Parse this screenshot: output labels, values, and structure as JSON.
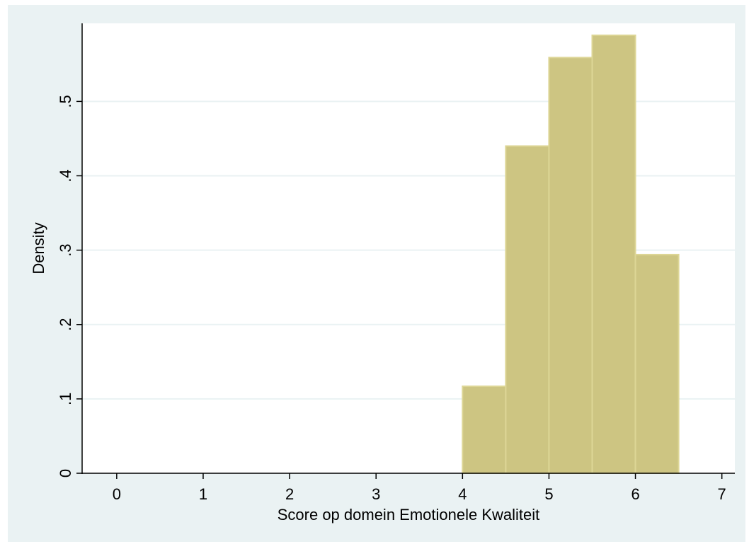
{
  "chart_data": {
    "type": "bar",
    "title": "",
    "xlabel": "Score op domein Emotionele Kwaliteit",
    "ylabel": "Density",
    "xlim": [
      -0.4,
      7.15
    ],
    "ylim": [
      0,
      0.605
    ],
    "xticks": [
      0,
      1,
      2,
      3,
      4,
      5,
      6,
      7
    ],
    "xtick_labels": [
      "0",
      "1",
      "2",
      "3",
      "4",
      "5",
      "6",
      "7"
    ],
    "yticks": [
      0,
      0.1,
      0.2,
      0.3,
      0.4,
      0.5
    ],
    "ytick_labels": [
      "0",
      ".1",
      ".2",
      ".3",
      ".4",
      ".5"
    ],
    "grid": true,
    "bins": [
      {
        "x0": 4.0,
        "x1": 4.5,
        "density": 0.117
      },
      {
        "x0": 4.5,
        "x1": 5.0,
        "density": 0.44
      },
      {
        "x0": 5.0,
        "x1": 5.5,
        "density": 0.559
      },
      {
        "x0": 5.5,
        "x1": 6.0,
        "density": 0.589
      },
      {
        "x0": 6.0,
        "x1": 6.5,
        "density": 0.294
      }
    ],
    "colors": {
      "outer_background": "#eaf2f3",
      "plot_background": "#ffffff",
      "bar_fill": "#cdc582",
      "bar_edge": "#ddd696",
      "grid": "#eaf2f3",
      "axis": "#000000"
    }
  }
}
